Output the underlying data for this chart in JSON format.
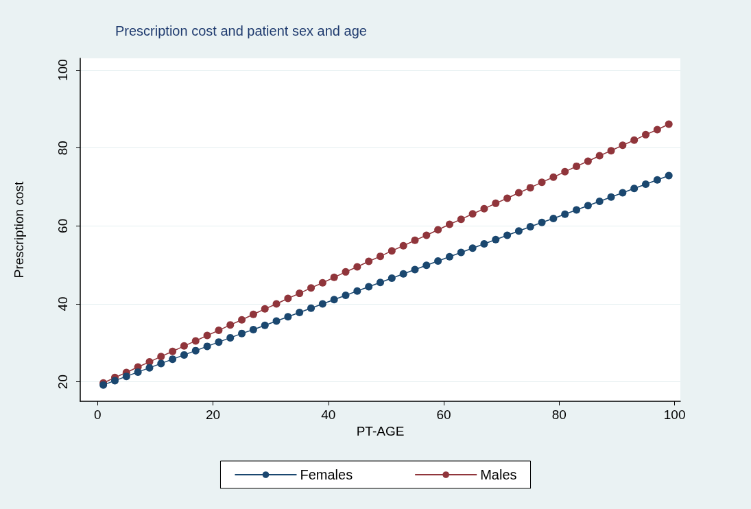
{
  "chart_data": {
    "type": "line",
    "title": "Prescription cost and patient sex and age",
    "xlabel": "PT-AGE",
    "ylabel": "Prescription cost",
    "x": [
      1,
      3,
      5,
      7,
      9,
      11,
      13,
      15,
      17,
      19,
      21,
      23,
      25,
      27,
      29,
      31,
      33,
      35,
      37,
      39,
      41,
      43,
      45,
      47,
      49,
      51,
      53,
      55,
      57,
      59,
      61,
      63,
      65,
      67,
      69,
      71,
      73,
      75,
      77,
      79,
      81,
      83,
      85,
      87,
      89,
      91,
      93,
      95,
      97,
      99
    ],
    "series": [
      {
        "name": "Females",
        "color": "#1a476f",
        "values": [
          19.2,
          20.3,
          21.4,
          22.5,
          23.6,
          24.7,
          25.8,
          26.9,
          28.0,
          29.1,
          30.2,
          31.3,
          32.4,
          33.4,
          34.5,
          35.6,
          36.7,
          37.8,
          38.9,
          40.0,
          41.1,
          42.2,
          43.3,
          44.4,
          45.5,
          46.6,
          47.7,
          48.8,
          49.9,
          51.0,
          52.1,
          53.2,
          54.3,
          55.4,
          56.5,
          57.6,
          58.7,
          59.8,
          60.9,
          61.9,
          63.0,
          64.1,
          65.2,
          66.3,
          67.4,
          68.5,
          69.6,
          70.7,
          71.8,
          72.9
        ]
      },
      {
        "name": "Males",
        "color": "#90353b",
        "values": [
          19.7,
          21.1,
          22.4,
          23.8,
          25.1,
          26.5,
          27.8,
          29.2,
          30.5,
          31.9,
          33.2,
          34.6,
          35.9,
          37.3,
          38.7,
          40.0,
          41.4,
          42.7,
          44.1,
          45.4,
          46.8,
          48.2,
          49.5,
          50.9,
          52.2,
          53.6,
          54.9,
          56.3,
          57.6,
          59.0,
          60.4,
          61.7,
          63.1,
          64.4,
          65.8,
          67.1,
          68.5,
          69.8,
          71.2,
          72.5,
          73.9,
          75.3,
          76.6,
          78.0,
          79.3,
          80.7,
          82.0,
          83.4,
          84.7,
          86.1
        ]
      }
    ],
    "xlim": [
      -3,
      101
    ],
    "xticks": [
      0,
      20,
      40,
      60,
      80,
      100
    ],
    "ylim": [
      15,
      103
    ],
    "yticks": [
      20,
      40,
      60,
      80,
      100
    ],
    "grid": "y",
    "legend": "bottom",
    "marker": "circle",
    "line_style": "solid"
  }
}
